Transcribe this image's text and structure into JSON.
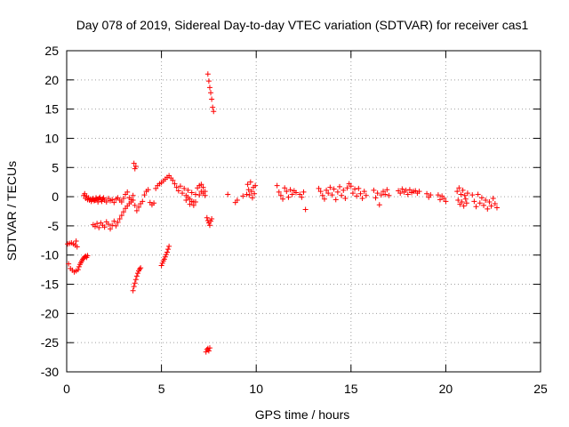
{
  "chart_data": {
    "type": "scatter",
    "title": "Day 078 of 2019, Sidereal Day-to-day VTEC variation (SDTVAR) for receiver cas1",
    "xlabel": "GPS time / hours",
    "ylabel": "SDTVAR / TECUs",
    "xlim": [
      0,
      25
    ],
    "ylim": [
      -30,
      25
    ],
    "xticks": [
      0,
      5,
      10,
      15,
      20,
      25
    ],
    "yticks": [
      -30,
      -25,
      -20,
      -15,
      -10,
      -5,
      0,
      5,
      10,
      15,
      20,
      25
    ],
    "grid": true,
    "marker": "+",
    "colors": {
      "series": "#ff0000",
      "axis": "#000000",
      "grid": "#a0a0a0"
    },
    "series": [
      {
        "name": "SDTVAR",
        "points": [
          [
            0.05,
            -8.1
          ],
          [
            0.1,
            -11.5
          ],
          [
            0.15,
            -8.0
          ],
          [
            0.2,
            -12.3
          ],
          [
            0.25,
            -7.9
          ],
          [
            0.3,
            -12.6
          ],
          [
            0.35,
            -8.1
          ],
          [
            0.4,
            -12.9
          ],
          [
            0.45,
            -8.3
          ],
          [
            0.5,
            -7.6
          ],
          [
            0.5,
            -12.7
          ],
          [
            0.55,
            -8.6
          ],
          [
            0.6,
            -12.5
          ],
          [
            0.65,
            -12.0
          ],
          [
            0.7,
            -11.6
          ],
          [
            0.75,
            -11.3
          ],
          [
            0.8,
            -11.0
          ],
          [
            0.85,
            -10.7
          ],
          [
            0.9,
            -10.5
          ],
          [
            0.95,
            -10.3
          ],
          [
            1.0,
            -10.2
          ],
          [
            1.05,
            -10.4
          ],
          [
            1.1,
            -10.1
          ],
          [
            0.9,
            0.2
          ],
          [
            0.95,
            0.5
          ],
          [
            1.0,
            -0.3
          ],
          [
            1.05,
            0.1
          ],
          [
            1.1,
            -0.5
          ],
          [
            1.15,
            -0.2
          ],
          [
            1.2,
            -0.6
          ],
          [
            1.25,
            -0.4
          ],
          [
            1.3,
            -0.8
          ],
          [
            1.35,
            -0.5
          ],
          [
            1.4,
            -0.3
          ],
          [
            1.45,
            -0.7
          ],
          [
            1.5,
            -0.6
          ],
          [
            1.55,
            -0.2
          ],
          [
            1.6,
            -0.4
          ],
          [
            1.65,
            -0.9
          ],
          [
            1.7,
            -0.3
          ],
          [
            1.75,
            -0.1
          ],
          [
            1.8,
            -0.5
          ],
          [
            1.85,
            -0.8
          ],
          [
            1.9,
            -0.4
          ],
          [
            1.95,
            -0.2
          ],
          [
            2.0,
            -0.6
          ],
          [
            2.1,
            -0.9
          ],
          [
            2.2,
            -0.3
          ],
          [
            2.3,
            -0.7
          ],
          [
            2.4,
            -0.5
          ],
          [
            2.5,
            -1.0
          ],
          [
            2.6,
            -0.4
          ],
          [
            2.7,
            -0.2
          ],
          [
            2.8,
            -0.6
          ],
          [
            2.9,
            -0.9
          ],
          [
            3.0,
            -0.3
          ],
          [
            3.1,
            0.4
          ],
          [
            3.2,
            0.8
          ],
          [
            3.3,
            -0.2
          ],
          [
            3.4,
            -0.5
          ],
          [
            3.5,
            0.2
          ],
          [
            1.4,
            -4.8
          ],
          [
            1.5,
            -5.1
          ],
          [
            1.6,
            -4.6
          ],
          [
            1.7,
            -5.3
          ],
          [
            1.8,
            -4.5
          ],
          [
            1.9,
            -4.9
          ],
          [
            2.0,
            -5.2
          ],
          [
            2.1,
            -4.3
          ],
          [
            2.2,
            -4.7
          ],
          [
            2.3,
            -5.5
          ],
          [
            2.4,
            -4.9
          ],
          [
            2.5,
            -4.2
          ],
          [
            2.6,
            -5.0
          ],
          [
            2.7,
            -4.4
          ],
          [
            2.8,
            -3.8
          ],
          [
            2.9,
            -3.2
          ],
          [
            3.0,
            -2.6
          ],
          [
            3.1,
            -2.0
          ],
          [
            3.2,
            -1.6
          ],
          [
            3.3,
            -1.2
          ],
          [
            3.4,
            -0.9
          ],
          [
            3.5,
            -0.6
          ],
          [
            3.6,
            -1.5
          ],
          [
            3.7,
            -2.4
          ],
          [
            3.8,
            -1.8
          ],
          [
            3.9,
            -1.2
          ],
          [
            4.0,
            -0.8
          ],
          [
            4.1,
            0.3
          ],
          [
            4.2,
            0.9
          ],
          [
            4.3,
            1.2
          ],
          [
            4.4,
            -1.0
          ],
          [
            4.5,
            -1.4
          ],
          [
            4.6,
            -1.1
          ],
          [
            4.7,
            1.4
          ],
          [
            4.8,
            1.9
          ],
          [
            4.9,
            2.2
          ],
          [
            3.55,
            5.7
          ],
          [
            3.6,
            4.8
          ],
          [
            3.65,
            5.2
          ],
          [
            3.5,
            -16.1
          ],
          [
            3.55,
            -15.4
          ],
          [
            3.6,
            -14.8
          ],
          [
            3.65,
            -14.2
          ],
          [
            3.7,
            -13.6
          ],
          [
            3.75,
            -13.1
          ],
          [
            3.8,
            -12.7
          ],
          [
            3.85,
            -12.4
          ],
          [
            3.9,
            -12.2
          ],
          [
            5.0,
            -11.8
          ],
          [
            5.05,
            -11.4
          ],
          [
            5.1,
            -11.0
          ],
          [
            5.15,
            -10.7
          ],
          [
            5.2,
            -10.3
          ],
          [
            5.25,
            -9.9
          ],
          [
            5.3,
            -9.5
          ],
          [
            5.35,
            -9.0
          ],
          [
            5.4,
            -8.5
          ],
          [
            5.0,
            2.4
          ],
          [
            5.1,
            2.7
          ],
          [
            5.2,
            3.0
          ],
          [
            5.3,
            3.3
          ],
          [
            5.4,
            3.6
          ],
          [
            5.5,
            3.2
          ],
          [
            5.6,
            2.8
          ],
          [
            5.7,
            2.2
          ],
          [
            5.8,
            1.6
          ],
          [
            5.9,
            1.0
          ],
          [
            6.0,
            1.8
          ],
          [
            6.1,
            0.6
          ],
          [
            6.2,
            1.4
          ],
          [
            6.3,
            0.2
          ],
          [
            6.4,
            1.1
          ],
          [
            6.5,
            -0.4
          ],
          [
            6.6,
            0.7
          ],
          [
            6.7,
            -0.9
          ],
          [
            6.8,
            0.4
          ],
          [
            6.9,
            1.5
          ],
          [
            7.0,
            1.9
          ],
          [
            7.1,
            2.1
          ],
          [
            7.2,
            1.6
          ],
          [
            7.3,
            0.9
          ],
          [
            6.3,
            -0.6
          ],
          [
            6.4,
            -0.1
          ],
          [
            6.5,
            -1.3
          ],
          [
            6.6,
            -0.8
          ],
          [
            6.7,
            -1.5
          ],
          [
            6.8,
            -0.9
          ],
          [
            7.0,
            0.3
          ],
          [
            7.1,
            0.9
          ],
          [
            7.2,
            0.6
          ],
          [
            7.3,
            0.2
          ],
          [
            7.4,
            -3.6
          ],
          [
            7.45,
            -4.1
          ],
          [
            7.5,
            -4.5
          ],
          [
            7.55,
            -4.9
          ],
          [
            7.6,
            -4.2
          ],
          [
            7.65,
            -3.8
          ],
          [
            7.45,
            21.0
          ],
          [
            7.5,
            19.8
          ],
          [
            7.55,
            18.7
          ],
          [
            7.6,
            17.8
          ],
          [
            7.65,
            16.7
          ],
          [
            7.7,
            15.3
          ],
          [
            7.75,
            14.6
          ],
          [
            7.35,
            -26.6
          ],
          [
            7.4,
            -26.2
          ],
          [
            7.45,
            -26.0
          ],
          [
            7.5,
            -26.4
          ],
          [
            7.55,
            -25.9
          ],
          [
            8.5,
            0.4
          ],
          [
            8.9,
            -1.0
          ],
          [
            9.0,
            -0.6
          ],
          [
            9.3,
            0.1
          ],
          [
            9.5,
            0.4
          ],
          [
            9.55,
            2.1
          ],
          [
            9.6,
            1.2
          ],
          [
            9.65,
            0.3
          ],
          [
            9.7,
            2.5
          ],
          [
            9.75,
            0.9
          ],
          [
            9.8,
            -0.2
          ],
          [
            9.85,
            1.6
          ],
          [
            9.9,
            0.5
          ],
          [
            9.95,
            1.9
          ],
          [
            11.1,
            1.9
          ],
          [
            11.2,
            0.8
          ],
          [
            11.3,
            0.2
          ],
          [
            11.4,
            -0.4
          ],
          [
            11.5,
            1.5
          ],
          [
            11.6,
            0.9
          ],
          [
            11.7,
            -0.1
          ],
          [
            11.8,
            1.2
          ],
          [
            11.9,
            0.4
          ],
          [
            12.0,
            1.0
          ],
          [
            12.1,
            0.7
          ],
          [
            12.3,
            0.4
          ],
          [
            12.4,
            -0.1
          ],
          [
            12.5,
            0.8
          ],
          [
            12.6,
            -2.2
          ],
          [
            13.3,
            1.4
          ],
          [
            13.4,
            0.9
          ],
          [
            13.5,
            0.2
          ],
          [
            13.6,
            -0.4
          ],
          [
            13.7,
            1.1
          ],
          [
            13.8,
            0.6
          ],
          [
            13.9,
            1.6
          ],
          [
            14.0,
            0.3
          ],
          [
            14.1,
            1.3
          ],
          [
            14.2,
            -0.5
          ],
          [
            14.3,
            0.8
          ],
          [
            14.4,
            1.7
          ],
          [
            14.5,
            0.2
          ],
          [
            14.6,
            1.1
          ],
          [
            14.7,
            -0.3
          ],
          [
            14.8,
            1.5
          ],
          [
            14.9,
            2.2
          ],
          [
            15.0,
            1.8
          ],
          [
            15.1,
            0.6
          ],
          [
            15.2,
            1.3
          ],
          [
            15.3,
            0.1
          ],
          [
            15.4,
            1.4
          ],
          [
            15.5,
            0.5
          ],
          [
            15.6,
            -0.3
          ],
          [
            15.7,
            0.9
          ],
          [
            15.8,
            0.2
          ],
          [
            16.2,
            1.1
          ],
          [
            16.3,
            -0.2
          ],
          [
            16.4,
            0.6
          ],
          [
            16.5,
            -1.4
          ],
          [
            16.6,
            0.3
          ],
          [
            16.7,
            0.9
          ],
          [
            16.8,
            0.4
          ],
          [
            16.9,
            1.2
          ],
          [
            17.0,
            0.2
          ],
          [
            17.5,
            1.0
          ],
          [
            17.6,
            0.6
          ],
          [
            17.7,
            1.3
          ],
          [
            17.8,
            0.8
          ],
          [
            17.9,
            1.1
          ],
          [
            18.0,
            0.4
          ],
          [
            18.1,
            1.2
          ],
          [
            18.2,
            0.7
          ],
          [
            18.3,
            0.9
          ],
          [
            18.4,
            1.0
          ],
          [
            18.5,
            0.6
          ],
          [
            18.6,
            0.9
          ],
          [
            19.0,
            0.5
          ],
          [
            19.1,
            -0.1
          ],
          [
            19.2,
            0.3
          ],
          [
            19.6,
            0.3
          ],
          [
            19.7,
            -0.5
          ],
          [
            19.8,
            0.1
          ],
          [
            19.9,
            -0.3
          ],
          [
            20.0,
            -0.8
          ],
          [
            20.6,
            0.9
          ],
          [
            20.65,
            -0.6
          ],
          [
            20.7,
            1.5
          ],
          [
            20.75,
            -1.3
          ],
          [
            20.8,
            0.4
          ],
          [
            20.85,
            -0.9
          ],
          [
            20.9,
            1.1
          ],
          [
            20.95,
            -1.6
          ],
          [
            21.0,
            0.2
          ],
          [
            21.05,
            -0.4
          ],
          [
            21.1,
            -1.1
          ],
          [
            21.15,
            0.6
          ],
          [
            21.4,
            0.3
          ],
          [
            21.5,
            -0.8
          ],
          [
            21.6,
            -1.7
          ],
          [
            21.7,
            0.4
          ],
          [
            21.8,
            -1.1
          ],
          [
            21.9,
            -0.2
          ],
          [
            22.0,
            -1.5
          ],
          [
            22.1,
            -0.6
          ],
          [
            22.2,
            -2.1
          ],
          [
            22.3,
            -0.9
          ],
          [
            22.4,
            -1.6
          ],
          [
            22.5,
            -0.3
          ],
          [
            22.6,
            -1.2
          ],
          [
            22.7,
            -1.9
          ]
        ]
      }
    ]
  }
}
